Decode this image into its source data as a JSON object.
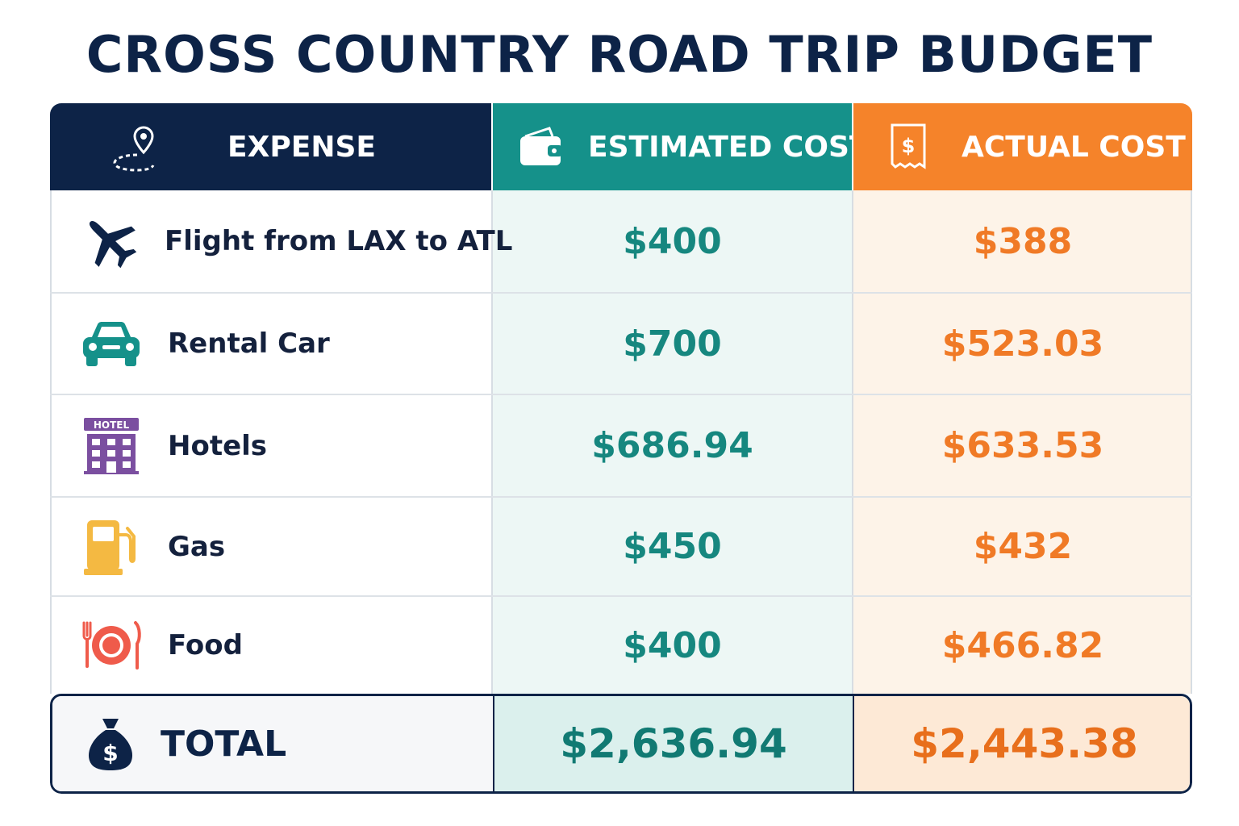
{
  "title": "CROSS COUNTRY ROAD TRIP BUDGET",
  "colors": {
    "navy": "#0d2347",
    "teal": "#15918a",
    "orange": "#f5832a"
  },
  "headers": {
    "expense": {
      "label": "EXPENSE",
      "icon": "map-pin-route-icon"
    },
    "estimated": {
      "label": "ESTIMATED COST",
      "icon": "wallet-icon"
    },
    "actual": {
      "label": "ACTUAL COST",
      "icon": "receipt-dollar-icon"
    }
  },
  "rows": [
    {
      "expense": "Flight from LAX to ATL",
      "icon": "airplane-icon",
      "estimated": "$400",
      "actual": "$388"
    },
    {
      "expense": "Rental Car",
      "icon": "car-icon",
      "estimated": "$700",
      "actual": "$523.03"
    },
    {
      "expense": "Hotels",
      "icon": "hotel-icon",
      "icon_text": "HOTEL",
      "estimated": "$686.94",
      "actual": "$633.53"
    },
    {
      "expense": "Gas",
      "icon": "gas-pump-icon",
      "estimated": "$450",
      "actual": "$432"
    },
    {
      "expense": "Food",
      "icon": "plate-fork-knife-icon",
      "estimated": "$400",
      "actual": "$466.82"
    }
  ],
  "total": {
    "label": "TOTAL",
    "icon": "money-bag-icon",
    "estimated": "$2,636.94",
    "actual": "$2,443.38"
  }
}
